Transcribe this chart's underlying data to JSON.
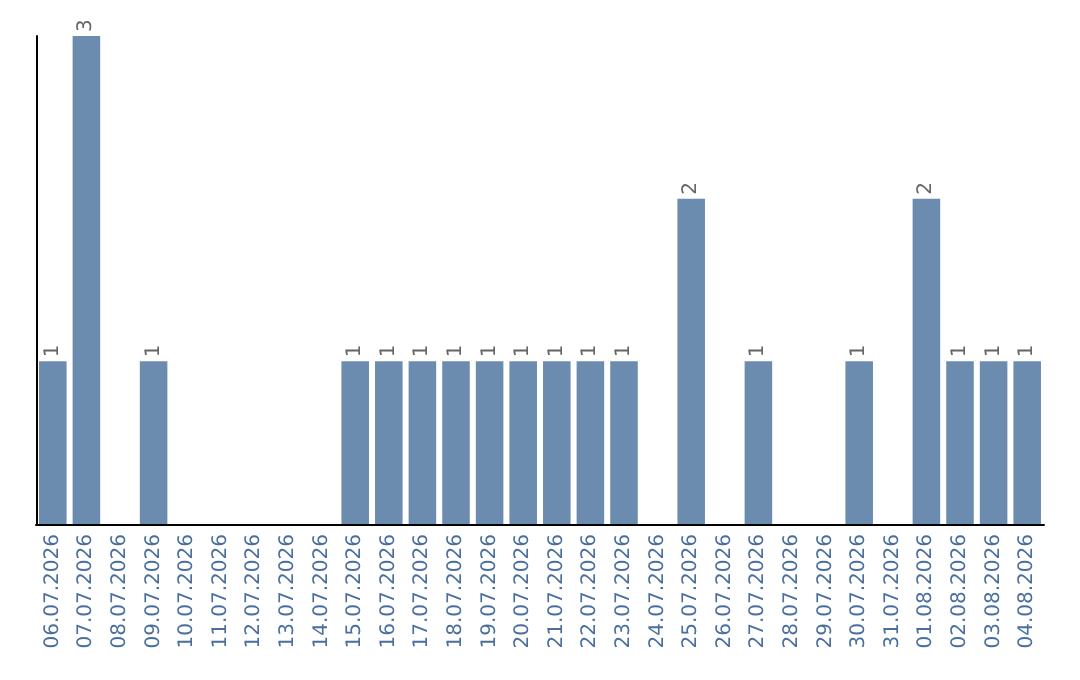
{
  "chart_data": {
    "type": "bar",
    "categories": [
      "06.07.2026",
      "07.07.2026",
      "08.07.2026",
      "09.07.2026",
      "10.07.2026",
      "11.07.2026",
      "12.07.2026",
      "13.07.2026",
      "14.07.2026",
      "15.07.2026",
      "16.07.2026",
      "17.07.2026",
      "18.07.2026",
      "19.07.2026",
      "20.07.2026",
      "21.07.2026",
      "22.07.2026",
      "23.07.2026",
      "24.07.2026",
      "25.07.2026",
      "26.07.2026",
      "27.07.2026",
      "28.07.2026",
      "29.07.2026",
      "30.07.2026",
      "31.07.2026",
      "01.08.2026",
      "02.08.2026",
      "03.08.2026",
      "04.08.2026"
    ],
    "values": [
      1,
      3,
      0,
      1,
      0,
      0,
      0,
      0,
      0,
      1,
      1,
      1,
      1,
      1,
      1,
      1,
      1,
      1,
      0,
      2,
      0,
      1,
      0,
      0,
      1,
      0,
      2,
      1,
      1,
      1
    ],
    "value_labels": [
      "1",
      "3",
      null,
      "1",
      null,
      null,
      null,
      null,
      null,
      "1",
      "1",
      "1",
      "1",
      "1",
      "1",
      "1",
      "1",
      "1",
      null,
      "2",
      null,
      "1",
      null,
      null,
      "1",
      null,
      "2",
      "1",
      "1",
      "1"
    ],
    "color": "#6b8cae",
    "grid": false,
    "tick_labels": "x"
  }
}
